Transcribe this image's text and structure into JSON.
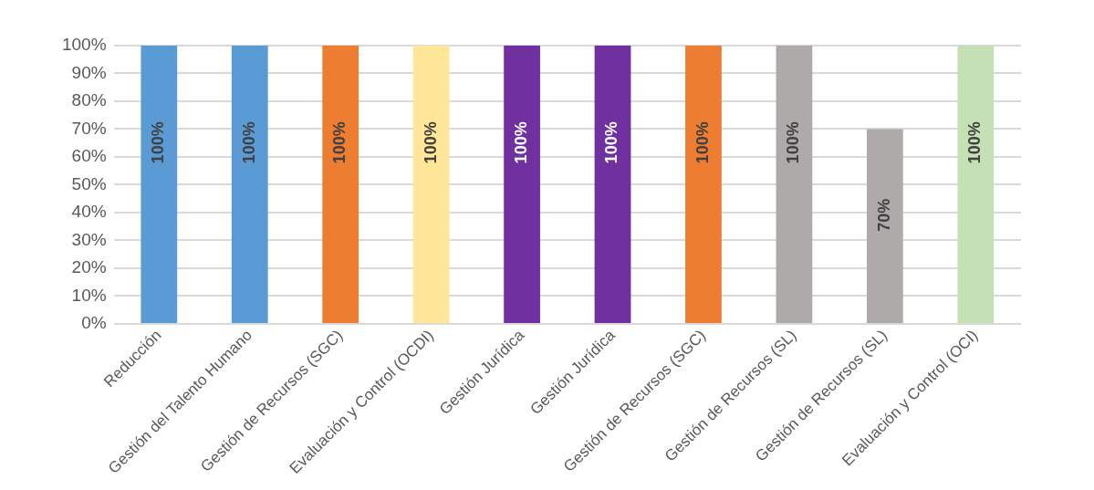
{
  "chart_data": {
    "type": "bar",
    "categories": [
      "Reducción",
      "Gestión del Talento Humano",
      "Gestión de Recursos (SGC)",
      "Evaluación y Control (OCDI)",
      "Gestión Jurídica",
      "Gestión Jurídica",
      "Gestión de Recursos (SGC)",
      "Gestión de Recursos (SL)",
      "Gestión de Recursos (SL)",
      "Evaluación y Control (OCI)"
    ],
    "values": [
      100,
      100,
      100,
      100,
      100,
      100,
      100,
      100,
      70,
      100
    ],
    "colors": [
      "#5b9bd5",
      "#5b9bd5",
      "#ed7d31",
      "#ffe699",
      "#7030a0",
      "#7030a0",
      "#ed7d31",
      "#aeaaaa",
      "#aeaaaa",
      "#c5e0b4"
    ],
    "value_labels": [
      "100%",
      "100%",
      "100%",
      "100%",
      "100%",
      "100%",
      "100%",
      "100%",
      "70%",
      "100%"
    ],
    "ylim": [
      0,
      100
    ],
    "yticks": [
      {
        "value": 0,
        "label": "0%"
      },
      {
        "value": 10,
        "label": "10%"
      },
      {
        "value": 20,
        "label": "20%"
      },
      {
        "value": 30,
        "label": "30%"
      },
      {
        "value": 40,
        "label": "40%"
      },
      {
        "value": 50,
        "label": "50%"
      },
      {
        "value": 60,
        "label": "60%"
      },
      {
        "value": 70,
        "label": "70%"
      },
      {
        "value": 80,
        "label": "80%"
      },
      {
        "value": 90,
        "label": "90%"
      },
      {
        "value": 100,
        "label": "100%"
      }
    ],
    "grid": "y"
  }
}
